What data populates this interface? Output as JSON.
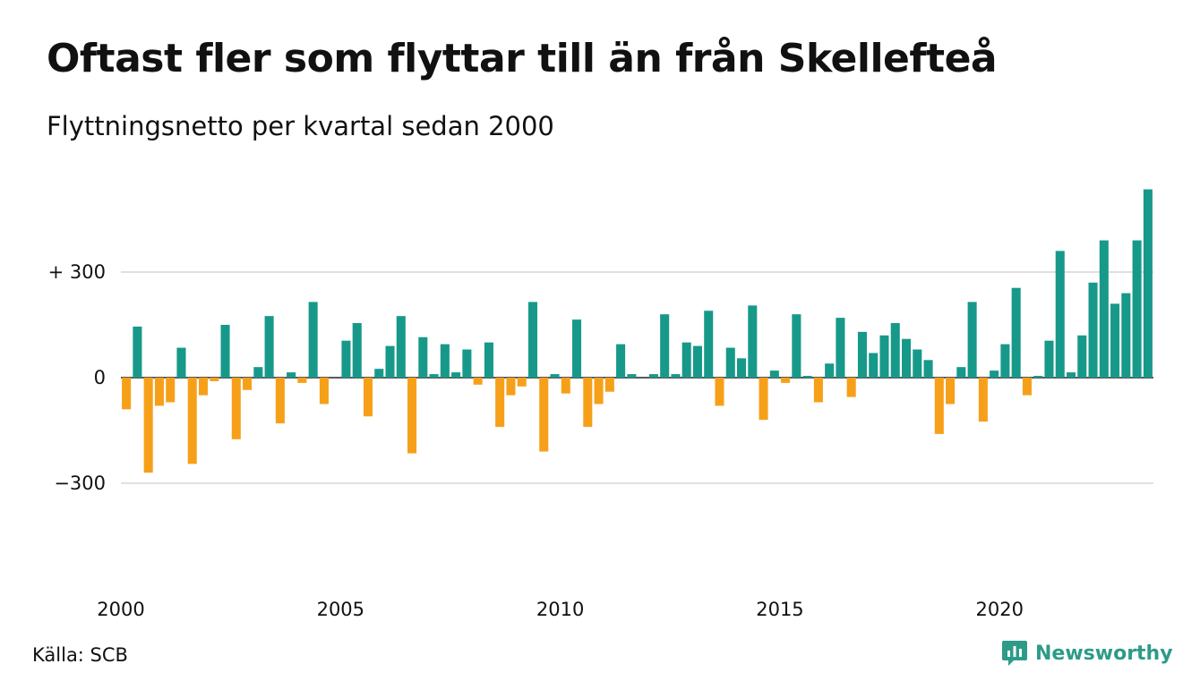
{
  "header": {
    "title": "Oftast fler som flyttar till än från Skellefteå",
    "subtitle": "Flyttningsnetto per kvartal sedan 2000"
  },
  "footer": {
    "source": "Källa: SCB",
    "brand": "Newsworthy",
    "brand_icon": "newsworthy-logo-icon"
  },
  "colors": {
    "positive": "#17998a",
    "negative": "#f6a01a",
    "grid": "#e0e0e0",
    "axis": "#222222",
    "brand": "#2d9b88"
  },
  "chart_data": {
    "type": "bar",
    "ylim": [
      -400,
      560
    ],
    "yticks": [
      300,
      0,
      -300
    ],
    "ytick_labels": [
      "+ 300",
      "0",
      "−300"
    ],
    "xticks": [
      2000,
      2005,
      2010,
      2015,
      2020
    ],
    "xtick_labels": [
      "2000",
      "2005",
      "2010",
      "2015",
      "2020"
    ],
    "start_year": 2000,
    "values": [
      -90,
      145,
      -270,
      -80,
      -70,
      85,
      -245,
      -50,
      -10,
      150,
      -175,
      -35,
      30,
      175,
      -130,
      15,
      -15,
      215,
      -75,
      0,
      105,
      155,
      -110,
      25,
      90,
      175,
      -215,
      115,
      10,
      95,
      15,
      80,
      -20,
      100,
      -140,
      -50,
      -25,
      215,
      -210,
      10,
      -45,
      165,
      -140,
      -75,
      -40,
      95,
      10,
      0,
      10,
      180,
      10,
      100,
      90,
      190,
      -80,
      85,
      55,
      205,
      -120,
      20,
      -15,
      180,
      5,
      -70,
      40,
      170,
      -55,
      130,
      70,
      120,
      155,
      110,
      80,
      50,
      -160,
      -75,
      30,
      215,
      -125,
      20,
      95,
      255,
      -50,
      5,
      105,
      360,
      15,
      120,
      270,
      390,
      210,
      240,
      390,
      535
    ]
  }
}
